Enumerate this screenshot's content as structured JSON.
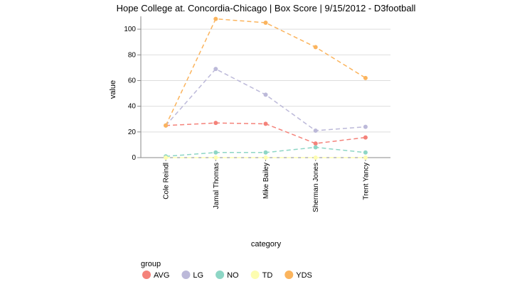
{
  "chart_data": {
    "type": "line",
    "title": "Hope College at. Concordia-Chicago | Box Score | 9/15/2012 - D3football",
    "xlabel": "category",
    "ylabel": "value",
    "ylim": [
      0,
      110
    ],
    "yticks": [
      0,
      20,
      40,
      60,
      80,
      100
    ],
    "grid": true,
    "line_style": "dashed",
    "categories": [
      "Cole Reindl",
      "Jamal Thomas",
      "Mike Bailey",
      "Sherman Jones",
      "Trent Yancy"
    ],
    "legend": {
      "title": "group",
      "placement": "bottom-left"
    },
    "series": [
      {
        "name": "AVG",
        "color": "#f4827a",
        "values": [
          25,
          27,
          26.3,
          11,
          15.7
        ]
      },
      {
        "name": "LG",
        "color": "#bcb9d9",
        "values": [
          25,
          69,
          49,
          21,
          24
        ]
      },
      {
        "name": "NO",
        "color": "#8dd6c5",
        "values": [
          1,
          4,
          4,
          8,
          4
        ]
      },
      {
        "name": "TD",
        "color": "#fdfdb0",
        "values": [
          0,
          0,
          0,
          0,
          0
        ]
      },
      {
        "name": "YDS",
        "color": "#fbb45d",
        "values": [
          25,
          108,
          105,
          86,
          62
        ]
      }
    ]
  }
}
